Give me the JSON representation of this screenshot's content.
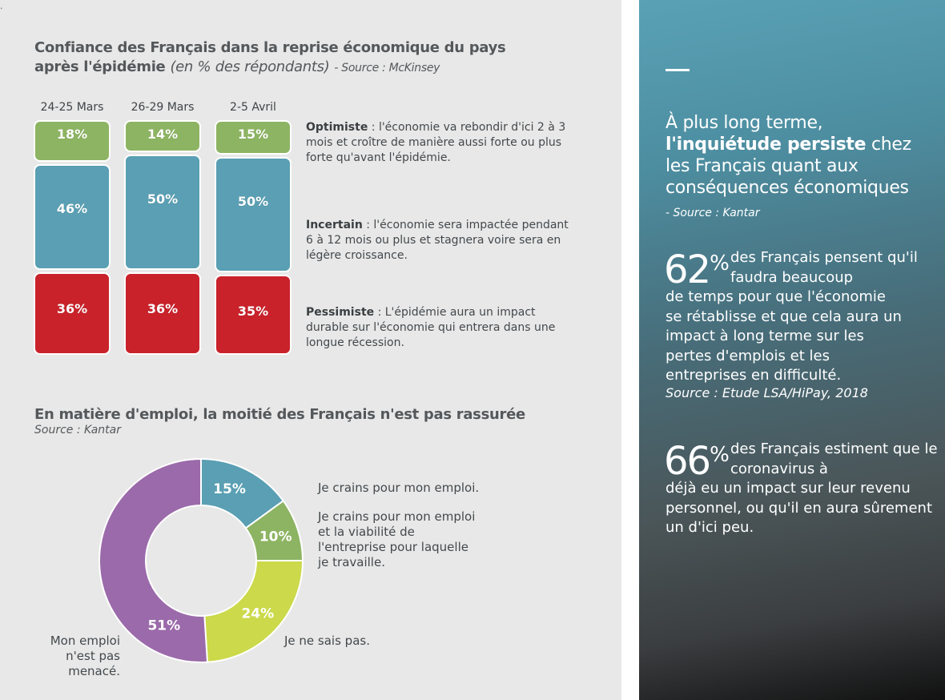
{
  "corner_mark": ".",
  "chart1": {
    "title_bold_1": "Confiance des Français dans la reprise économique du pays",
    "title_bold_2": "après l'épidémie",
    "title_italic": "(en % des répondants)",
    "source": "- Source : McKinsey",
    "legend": {
      "optimiste_label": "Optimiste",
      "optimiste_text": " : l'économie va rebondir d'ici 2 à 3 mois et croître de manière aussi forte ou plus forte qu'avant l'épidémie.",
      "incertain_label": "Incertain",
      "incertain_text": " : l'économie sera impactée pendant 6 à 12 mois ou plus et stagnera voire sera en légère croissance.",
      "pessimiste_label": "Pessimiste",
      "pessimiste_text": " :  L'épidémie aura un impact durable sur l'économie qui entrera dans une longue récession."
    }
  },
  "chart2": {
    "title": "En matière d'emploi, la moitié des Français n'est pas rassurée",
    "source": "Source : Kantar",
    "labels": {
      "l15": "Je crains pour mon emploi.",
      "l10": "Je crains pour mon emploi et la viabilité de l'entreprise pour laquelle je travaille.",
      "l24": "Je ne sais pas.",
      "l51": "Mon emploi n'est pas menacé."
    }
  },
  "chart_data": [
    {
      "type": "bar",
      "stacked": true,
      "categories": [
        "24-25 Mars",
        "26-29 Mars",
        "2-5 Avril"
      ],
      "series": [
        {
          "name": "Optimiste",
          "values": [
            18,
            14,
            15
          ],
          "color": "#8db462"
        },
        {
          "name": "Incertain",
          "values": [
            46,
            50,
            50
          ],
          "color": "#5a9fb3"
        },
        {
          "name": "Pessimiste",
          "values": [
            36,
            36,
            35
          ],
          "color": "#c9222b"
        }
      ],
      "data_labels": {
        "Optimiste": [
          "18%",
          "14%",
          "15%"
        ],
        "Incertain": [
          "46%",
          "50%",
          "50%"
        ],
        "Pessimiste": [
          "36%",
          "36%",
          "35%"
        ]
      },
      "ylim": [
        0,
        100
      ],
      "grid": false
    },
    {
      "type": "pie",
      "donut": true,
      "slices": [
        {
          "label": "15%",
          "value": 15,
          "color": "#5a9fb3"
        },
        {
          "label": "10%",
          "value": 10,
          "color": "#8db462"
        },
        {
          "label": "24%",
          "value": 24,
          "color": "#cbd94a"
        },
        {
          "label": "51%",
          "value": 51,
          "color": "#9b6aaa"
        }
      ]
    }
  ],
  "right_panel": {
    "quote_1": "À plus long terme,",
    "quote_bold": "l'inquiétude persiste",
    "quote_2": " chez les Français quant aux conséquences économiques",
    "quote_source": "- Source : Kantar",
    "stat1": {
      "number": "62",
      "percent": "%",
      "text_first": "des Français pensent qu'il faudra beaucoup",
      "text_rest": "de temps pour que l'économie se rétablisse et que cela aura un impact à long terme sur les pertes d'emplois et les entreprises en difficulté.",
      "source": "Source : Etude LSA/HiPay, 2018"
    },
    "stat2": {
      "number": "66",
      "percent": "%",
      "text_first": "des Français estiment que le coronavirus à",
      "text_rest": "déjà eu un impact sur leur revenu personnel, ou qu'il en aura sûrement un d'ici peu."
    },
    "colors": {
      "accent": "#5aa1b5"
    }
  }
}
